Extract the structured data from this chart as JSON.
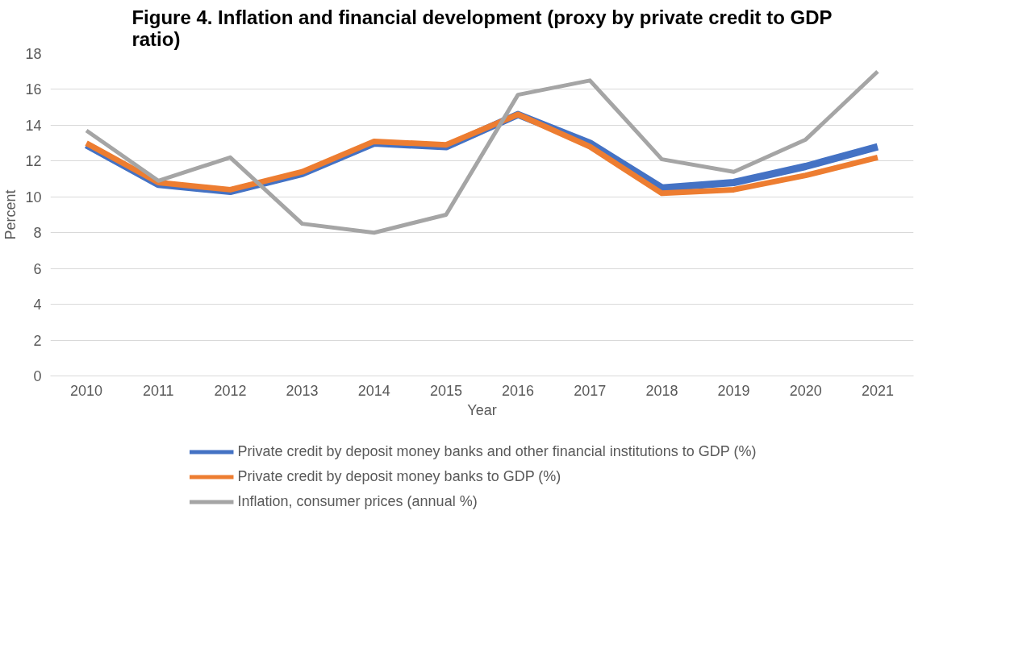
{
  "chart_data": {
    "type": "line",
    "title": "Figure 4. Inflation and financial development (proxy by private credit to GDP ratio)",
    "xlabel": "Year",
    "ylabel": "Percent",
    "categories": [
      "2010",
      "2011",
      "2012",
      "2013",
      "2014",
      "2015",
      "2016",
      "2017",
      "2018",
      "2019",
      "2020",
      "2021"
    ],
    "series": [
      {
        "name": "Private credit by deposit money banks and other financial institutions to GDP (%)",
        "color": "#4472c4",
        "values": [
          12.9,
          10.7,
          10.3,
          11.3,
          13.0,
          12.8,
          14.6,
          13.0,
          10.5,
          10.8,
          11.7,
          12.8
        ]
      },
      {
        "name": "Private credit by deposit money banks to GDP (%)",
        "color": "#ed7d31",
        "values": [
          13.0,
          10.8,
          10.4,
          11.4,
          13.1,
          12.9,
          14.6,
          12.8,
          10.2,
          10.4,
          11.2,
          12.2
        ]
      },
      {
        "name": "Inflation, consumer prices (annual %)",
        "color": "#a5a5a5",
        "values": [
          13.7,
          10.9,
          12.2,
          8.5,
          8.0,
          9.0,
          15.7,
          16.5,
          12.1,
          11.4,
          13.2,
          17.0
        ]
      }
    ],
    "ylim": [
      0,
      18
    ],
    "yticks": [
      0,
      2,
      4,
      6,
      8,
      10,
      12,
      14,
      16,
      18
    ],
    "grid": "y",
    "legend": "bottom",
    "marker": "none",
    "line_style": "solid"
  }
}
